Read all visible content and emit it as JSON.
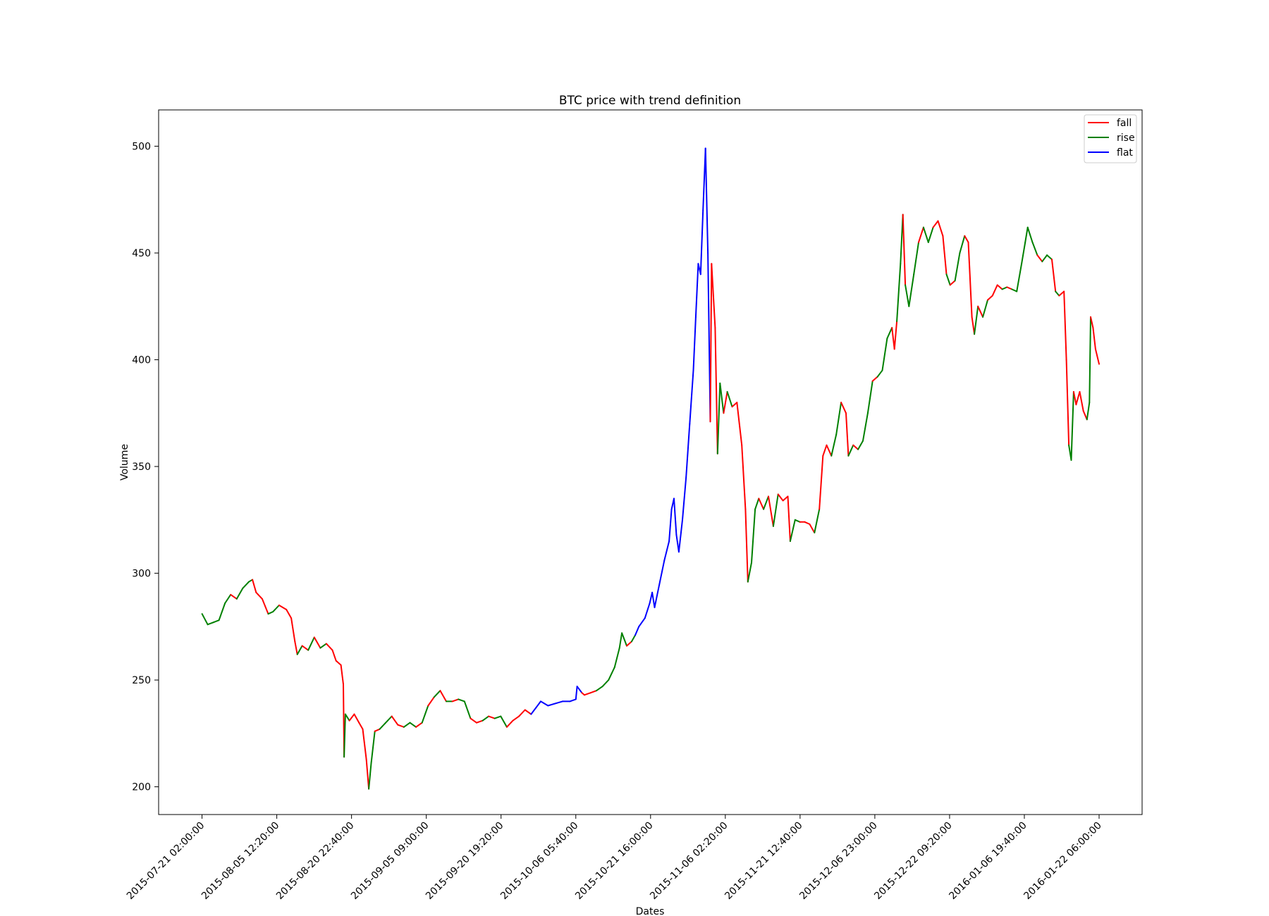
{
  "chart_data": {
    "type": "line",
    "title": "BTC price with trend definition",
    "xlabel": "Dates",
    "ylabel": "Volume",
    "ylim": [
      187,
      517
    ],
    "yticks": [
      200,
      250,
      300,
      350,
      400,
      450,
      500
    ],
    "x_ticks": [
      "2015-07-21 02:00:00",
      "2015-08-05 12:20:00",
      "2015-08-20 22:40:00",
      "2015-09-05 09:00:00",
      "2015-09-20 19:20:00",
      "2015-10-06 05:40:00",
      "2015-10-21 16:00:00",
      "2015-11-06 02:20:00",
      "2015-11-21 12:40:00",
      "2015-12-06 23:00:00",
      "2015-12-22 09:20:00",
      "2016-01-06 19:40:00",
      "2016-01-22 06:00:00"
    ],
    "xlim": [
      "2015-07-12 03:00:00",
      "2016-01-31 03:00:00"
    ],
    "legend": {
      "placement": "top-right",
      "entries": [
        "fall",
        "rise",
        "flat"
      ]
    },
    "grid": false,
    "colors": {
      "fall": "#ff0000",
      "rise": "#008000",
      "flat": "#0000ff"
    },
    "series_points": [
      [
        "2015-07-21 02:00:00",
        281,
        "rise"
      ],
      [
        "2015-07-22 06:00:00",
        276,
        "rise"
      ],
      [
        "2015-07-23 10:00:00",
        277,
        "rise"
      ],
      [
        "2015-07-24 14:00:00",
        278,
        "rise"
      ],
      [
        "2015-07-25 20:00:00",
        286,
        "rise"
      ],
      [
        "2015-07-27 00:00:00",
        290,
        "rise"
      ],
      [
        "2015-07-28 06:00:00",
        288,
        "fall"
      ],
      [
        "2015-07-29 12:00:00",
        293,
        "rise"
      ],
      [
        "2015-07-30 18:00:00",
        296,
        "rise"
      ],
      [
        "2015-07-31 12:00:00",
        297,
        "rise"
      ],
      [
        "2015-08-01 06:00:00",
        291,
        "fall"
      ],
      [
        "2015-08-02 12:00:00",
        288,
        "fall"
      ],
      [
        "2015-08-03 18:00:00",
        281,
        "fall"
      ],
      [
        "2015-08-04 18:00:00",
        282,
        "rise"
      ],
      [
        "2015-08-06 00:00:00",
        285,
        "rise"
      ],
      [
        "2015-08-07 12:00:00",
        283,
        "fall"
      ],
      [
        "2015-08-08 12:00:00",
        279,
        "fall"
      ],
      [
        "2015-08-09 06:00:00",
        268,
        "fall"
      ],
      [
        "2015-08-09 18:00:00",
        262,
        "fall"
      ],
      [
        "2015-08-10 18:00:00",
        266,
        "rise"
      ],
      [
        "2015-08-12 00:00:00",
        264,
        "fall"
      ],
      [
        "2015-08-13 06:00:00",
        270,
        "rise"
      ],
      [
        "2015-08-14 12:00:00",
        265,
        "fall"
      ],
      [
        "2015-08-15 18:00:00",
        267,
        "rise"
      ],
      [
        "2015-08-17 00:00:00",
        264,
        "fall"
      ],
      [
        "2015-08-17 18:00:00",
        259,
        "fall"
      ],
      [
        "2015-08-18 18:00:00",
        257,
        "fall"
      ],
      [
        "2015-08-19 06:00:00",
        248,
        "fall"
      ],
      [
        "2015-08-19 10:00:00",
        214,
        "fall"
      ],
      [
        "2015-08-19 16:00:00",
        234,
        "rise"
      ],
      [
        "2015-08-20 12:00:00",
        231,
        "rise"
      ],
      [
        "2015-08-21 12:00:00",
        234,
        "fall"
      ],
      [
        "2015-08-22 12:00:00",
        230,
        "fall"
      ],
      [
        "2015-08-23 06:00:00",
        227,
        "fall"
      ],
      [
        "2015-08-24 00:00:00",
        213,
        "fall"
      ],
      [
        "2015-08-24 12:00:00",
        199,
        "fall"
      ],
      [
        "2015-08-25 00:00:00",
        211,
        "rise"
      ],
      [
        "2015-08-25 18:00:00",
        226,
        "rise"
      ],
      [
        "2015-08-26 18:00:00",
        227,
        "fall"
      ],
      [
        "2015-08-28 00:00:00",
        230,
        "rise"
      ],
      [
        "2015-08-29 06:00:00",
        233,
        "rise"
      ],
      [
        "2015-08-30 12:00:00",
        229,
        "fall"
      ],
      [
        "2015-08-31 18:00:00",
        228,
        "fall"
      ],
      [
        "2015-09-02 00:00:00",
        230,
        "rise"
      ],
      [
        "2015-09-03 06:00:00",
        228,
        "rise"
      ],
      [
        "2015-09-04 12:00:00",
        230,
        "fall"
      ],
      [
        "2015-09-05 18:00:00",
        238,
        "rise"
      ],
      [
        "2015-09-07 00:00:00",
        242,
        "fall"
      ],
      [
        "2015-09-08 06:00:00",
        245,
        "rise"
      ],
      [
        "2015-09-09 12:00:00",
        240,
        "fall"
      ],
      [
        "2015-09-10 18:00:00",
        240,
        "rise"
      ],
      [
        "2015-09-12 00:00:00",
        241,
        "fall"
      ],
      [
        "2015-09-13 06:00:00",
        240,
        "rise"
      ],
      [
        "2015-09-14 12:00:00",
        232,
        "rise"
      ],
      [
        "2015-09-15 18:00:00",
        230,
        "fall"
      ],
      [
        "2015-09-17 00:00:00",
        231,
        "fall"
      ],
      [
        "2015-09-18 06:00:00",
        233,
        "rise"
      ],
      [
        "2015-09-19 12:00:00",
        232,
        "fall"
      ],
      [
        "2015-09-20 18:00:00",
        233,
        "rise"
      ],
      [
        "2015-09-22 00:00:00",
        228,
        "rise"
      ],
      [
        "2015-09-23 06:00:00",
        231,
        "fall"
      ],
      [
        "2015-09-24 12:00:00",
        233,
        "fall"
      ],
      [
        "2015-09-25 18:00:00",
        236,
        "fall"
      ],
      [
        "2015-09-27 00:00:00",
        234,
        "fall"
      ],
      [
        "2015-09-28 00:00:00",
        237,
        "flat"
      ],
      [
        "2015-09-29 00:00:00",
        240,
        "flat"
      ],
      [
        "2015-09-30 12:00:00",
        238,
        "flat"
      ],
      [
        "2015-10-02 00:00:00",
        239,
        "flat"
      ],
      [
        "2015-10-03 12:00:00",
        240,
        "flat"
      ],
      [
        "2015-10-05 00:00:00",
        240,
        "flat"
      ],
      [
        "2015-10-06 06:00:00",
        241,
        "flat"
      ],
      [
        "2015-10-06 12:00:00",
        247,
        "flat"
      ],
      [
        "2015-10-07 12:00:00",
        244,
        "flat"
      ],
      [
        "2015-10-08 00:00:00",
        243,
        "fall"
      ],
      [
        "2015-10-09 06:00:00",
        244,
        "fall"
      ],
      [
        "2015-10-10 12:00:00",
        245,
        "fall"
      ],
      [
        "2015-10-11 18:00:00",
        247,
        "rise"
      ],
      [
        "2015-10-13 00:00:00",
        250,
        "rise"
      ],
      [
        "2015-10-14 06:00:00",
        256,
        "rise"
      ],
      [
        "2015-10-15 06:00:00",
        265,
        "rise"
      ],
      [
        "2015-10-15 18:00:00",
        272,
        "rise"
      ],
      [
        "2015-10-16 18:00:00",
        266,
        "rise"
      ],
      [
        "2015-10-17 18:00:00",
        268,
        "fall"
      ],
      [
        "2015-10-18 12:00:00",
        271,
        "rise"
      ],
      [
        "2015-10-19 06:00:00",
        275,
        "flat"
      ],
      [
        "2015-10-20 12:00:00",
        279,
        "flat"
      ],
      [
        "2015-10-21 12:00:00",
        286,
        "flat"
      ],
      [
        "2015-10-22 00:00:00",
        291,
        "flat"
      ],
      [
        "2015-10-22 12:00:00",
        284,
        "flat"
      ],
      [
        "2015-10-23 12:00:00",
        295,
        "flat"
      ],
      [
        "2015-10-24 12:00:00",
        306,
        "flat"
      ],
      [
        "2015-10-25 12:00:00",
        315,
        "flat"
      ],
      [
        "2015-10-26 00:00:00",
        330,
        "flat"
      ],
      [
        "2015-10-26 12:00:00",
        335,
        "flat"
      ],
      [
        "2015-10-27 00:00:00",
        318,
        "flat"
      ],
      [
        "2015-10-27 12:00:00",
        310,
        "flat"
      ],
      [
        "2015-10-28 06:00:00",
        325,
        "flat"
      ],
      [
        "2015-10-29 00:00:00",
        345,
        "flat"
      ],
      [
        "2015-10-29 18:00:00",
        370,
        "flat"
      ],
      [
        "2015-10-30 12:00:00",
        395,
        "flat"
      ],
      [
        "2015-10-31 00:00:00",
        420,
        "flat"
      ],
      [
        "2015-10-31 12:00:00",
        445,
        "flat"
      ],
      [
        "2015-11-01 00:00:00",
        440,
        "flat"
      ],
      [
        "2015-11-01 12:00:00",
        470,
        "flat"
      ],
      [
        "2015-11-02 00:00:00",
        499,
        "flat"
      ],
      [
        "2015-11-02 12:00:00",
        450,
        "flat"
      ],
      [
        "2015-11-03 00:00:00",
        371,
        "flat"
      ],
      [
        "2015-11-03 06:00:00",
        445,
        "fall"
      ],
      [
        "2015-11-04 00:00:00",
        415,
        "fall"
      ],
      [
        "2015-11-04 12:00:00",
        356,
        "fall"
      ],
      [
        "2015-11-05 00:00:00",
        389,
        "rise"
      ],
      [
        "2015-11-05 18:00:00",
        375,
        "rise"
      ],
      [
        "2015-11-06 12:00:00",
        385,
        "fall"
      ],
      [
        "2015-11-07 12:00:00",
        378,
        "rise"
      ],
      [
        "2015-11-08 12:00:00",
        380,
        "fall"
      ],
      [
        "2015-11-09 12:00:00",
        360,
        "fall"
      ],
      [
        "2015-11-10 06:00:00",
        330,
        "fall"
      ],
      [
        "2015-11-10 18:00:00",
        296,
        "fall"
      ],
      [
        "2015-11-11 12:00:00",
        305,
        "rise"
      ],
      [
        "2015-11-12 06:00:00",
        330,
        "rise"
      ],
      [
        "2015-11-13 00:00:00",
        335,
        "rise"
      ],
      [
        "2015-11-14 00:00:00",
        330,
        "fall"
      ],
      [
        "2015-11-15 00:00:00",
        336,
        "rise"
      ],
      [
        "2015-11-16 00:00:00",
        322,
        "fall"
      ],
      [
        "2015-11-17 00:00:00",
        337,
        "rise"
      ],
      [
        "2015-11-18 00:00:00",
        334,
        "fall"
      ],
      [
        "2015-11-19 00:00:00",
        336,
        "fall"
      ],
      [
        "2015-11-19 12:00:00",
        315,
        "fall"
      ],
      [
        "2015-11-20 12:00:00",
        325,
        "rise"
      ],
      [
        "2015-11-21 12:00:00",
        324,
        "rise"
      ],
      [
        "2015-11-22 12:00:00",
        324,
        "fall"
      ],
      [
        "2015-11-23 12:00:00",
        323,
        "fall"
      ],
      [
        "2015-11-24 12:00:00",
        319,
        "fall"
      ],
      [
        "2015-11-25 12:00:00",
        330,
        "rise"
      ],
      [
        "2015-11-26 06:00:00",
        355,
        "fall"
      ],
      [
        "2015-11-27 00:00:00",
        360,
        "fall"
      ],
      [
        "2015-11-28 00:00:00",
        355,
        "fall"
      ],
      [
        "2015-11-29 00:00:00",
        365,
        "rise"
      ],
      [
        "2015-11-30 00:00:00",
        380,
        "rise"
      ],
      [
        "2015-12-01 00:00:00",
        375,
        "fall"
      ],
      [
        "2015-12-01 12:00:00",
        355,
        "fall"
      ],
      [
        "2015-12-02 12:00:00",
        360,
        "rise"
      ],
      [
        "2015-12-03 12:00:00",
        358,
        "fall"
      ],
      [
        "2015-12-04 12:00:00",
        362,
        "rise"
      ],
      [
        "2015-12-05 12:00:00",
        375,
        "rise"
      ],
      [
        "2015-12-06 12:00:00",
        390,
        "rise"
      ],
      [
        "2015-12-07 12:00:00",
        392,
        "fall"
      ],
      [
        "2015-12-08 12:00:00",
        395,
        "rise"
      ],
      [
        "2015-12-09 12:00:00",
        410,
        "rise"
      ],
      [
        "2015-12-10 12:00:00",
        415,
        "rise"
      ],
      [
        "2015-12-11 00:00:00",
        405,
        "fall"
      ],
      [
        "2015-12-11 12:00:00",
        418,
        "fall"
      ],
      [
        "2015-12-12 06:00:00",
        445,
        "rise"
      ],
      [
        "2015-12-12 18:00:00",
        468,
        "rise"
      ],
      [
        "2015-12-13 06:00:00",
        435,
        "fall"
      ],
      [
        "2015-12-14 00:00:00",
        425,
        "rise"
      ],
      [
        "2015-12-15 00:00:00",
        440,
        "rise"
      ],
      [
        "2015-12-16 00:00:00",
        455,
        "rise"
      ],
      [
        "2015-12-17 00:00:00",
        462,
        "fall"
      ],
      [
        "2015-12-18 00:00:00",
        455,
        "rise"
      ],
      [
        "2015-12-19 00:00:00",
        462,
        "rise"
      ],
      [
        "2015-12-20 00:00:00",
        465,
        "fall"
      ],
      [
        "2015-12-21 00:00:00",
        458,
        "fall"
      ],
      [
        "2015-12-21 18:00:00",
        440,
        "fall"
      ],
      [
        "2015-12-22 12:00:00",
        435,
        "rise"
      ],
      [
        "2015-12-23 12:00:00",
        437,
        "fall"
      ],
      [
        "2015-12-24 12:00:00",
        450,
        "rise"
      ],
      [
        "2015-12-25 12:00:00",
        458,
        "rise"
      ],
      [
        "2015-12-26 06:00:00",
        455,
        "fall"
      ],
      [
        "2015-12-27 00:00:00",
        420,
        "fall"
      ],
      [
        "2015-12-27 12:00:00",
        412,
        "fall"
      ],
      [
        "2015-12-28 06:00:00",
        425,
        "rise"
      ],
      [
        "2015-12-29 06:00:00",
        420,
        "fall"
      ],
      [
        "2015-12-30 06:00:00",
        428,
        "rise"
      ],
      [
        "2015-12-31 06:00:00",
        430,
        "fall"
      ],
      [
        "2016-01-01 06:00:00",
        435,
        "fall"
      ],
      [
        "2016-01-02 06:00:00",
        433,
        "fall"
      ],
      [
        "2016-01-03 06:00:00",
        434,
        "rise"
      ],
      [
        "2016-01-04 06:00:00",
        433,
        "fall"
      ],
      [
        "2016-01-05 06:00:00",
        432,
        "rise"
      ],
      [
        "2016-01-06 06:00:00",
        445,
        "rise"
      ],
      [
        "2016-01-07 00:00:00",
        455,
        "rise"
      ],
      [
        "2016-01-07 12:00:00",
        462,
        "rise"
      ],
      [
        "2016-01-08 12:00:00",
        455,
        "rise"
      ],
      [
        "2016-01-09 12:00:00",
        449,
        "rise"
      ],
      [
        "2016-01-10 12:00:00",
        446,
        "fall"
      ],
      [
        "2016-01-11 12:00:00",
        449,
        "rise"
      ],
      [
        "2016-01-12 12:00:00",
        447,
        "rise"
      ],
      [
        "2016-01-13 06:00:00",
        432,
        "fall"
      ],
      [
        "2016-01-14 00:00:00",
        430,
        "rise"
      ],
      [
        "2016-01-15 00:00:00",
        432,
        "fall"
      ],
      [
        "2016-01-15 12:00:00",
        400,
        "fall"
      ],
      [
        "2016-01-16 00:00:00",
        360,
        "fall"
      ],
      [
        "2016-01-16 12:00:00",
        353,
        "rise"
      ],
      [
        "2016-01-17 00:00:00",
        385,
        "rise"
      ],
      [
        "2016-01-17 12:00:00",
        379,
        "fall"
      ],
      [
        "2016-01-18 06:00:00",
        385,
        "fall"
      ],
      [
        "2016-01-19 00:00:00",
        376,
        "fall"
      ],
      [
        "2016-01-19 18:00:00",
        372,
        "fall"
      ],
      [
        "2016-01-20 06:00:00",
        380,
        "rise"
      ],
      [
        "2016-01-20 12:00:00",
        420,
        "rise"
      ],
      [
        "2016-01-21 00:00:00",
        415,
        "fall"
      ],
      [
        "2016-01-21 12:00:00",
        405,
        "fall"
      ],
      [
        "2016-01-22 06:00:00",
        398,
        "fall"
      ]
    ]
  }
}
